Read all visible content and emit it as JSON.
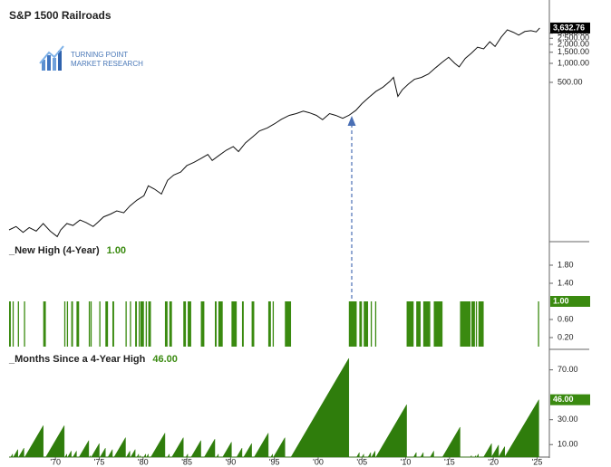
{
  "logo": [
    "TURNING POINT",
    "MARKET RESEARCH"
  ],
  "chart_data": [
    {
      "type": "line",
      "title": "S&P 1500 Railroads",
      "color": "#111111",
      "yscale": "log",
      "xlim": [
        1964.7,
        2026.4
      ],
      "ylim": [
        1.6,
        7250
      ],
      "yticks": [
        {
          "value": 500,
          "label": "500.00"
        },
        {
          "value": 1000,
          "label": "1,000.00"
        },
        {
          "value": 1500,
          "label": "1,500.00"
        },
        {
          "value": 2000,
          "label": "2,000.00"
        },
        {
          "value": 2500,
          "label": "2,500.00"
        },
        {
          "value": 3000,
          "label": "3,000.00"
        }
      ],
      "value_label": "3,632.76",
      "box_color": "#000000",
      "x": [
        1964.7,
        1965.5,
        1966.3,
        1967,
        1967.8,
        1968.6,
        1969.4,
        1970.2,
        1970.6,
        1971.3,
        1972,
        1972.8,
        1973.5,
        1974.3,
        1974.8,
        1975.5,
        1976.3,
        1977,
        1977.8,
        1978.5,
        1979.3,
        1980.1,
        1980.6,
        1981.3,
        1982.1,
        1982.8,
        1983.5,
        1984.3,
        1985,
        1985.8,
        1986.6,
        1987.4,
        1987.9,
        1988.7,
        1989.5,
        1990.3,
        1990.9,
        1991.7,
        1992.5,
        1993.3,
        1994.2,
        1995,
        1995.8,
        1996.7,
        1997.5,
        1998.3,
        1999,
        1999.8,
        2000.5,
        2001.3,
        2002,
        2002.8,
        2003.5,
        2004.3,
        2005,
        2005.8,
        2006.6,
        2007.4,
        2008.2,
        2008.6,
        2009.1,
        2009.6,
        2010.3,
        2011,
        2011.8,
        2012.6,
        2013.4,
        2014.2,
        2014.9,
        2015.6,
        2016.1,
        2016.8,
        2017.5,
        2018.2,
        2018.9,
        2019.6,
        2020.2,
        2020.9,
        2021.6,
        2022.3,
        2022.9,
        2023.6,
        2024.3,
        2024.9,
        2025.3
      ],
      "values": [
        2.3,
        2.6,
        2.1,
        2.5,
        2.2,
        2.9,
        2.2,
        1.8,
        2.3,
        2.9,
        2.7,
        3.3,
        3.0,
        2.6,
        3.0,
        3.7,
        4.1,
        4.6,
        4.3,
        5.5,
        6.8,
        8.0,
        11.5,
        10.2,
        8.5,
        14,
        17,
        19,
        24,
        27,
        31,
        36,
        29,
        35,
        42,
        48,
        40,
        55,
        68,
        85,
        95,
        110,
        130,
        150,
        160,
        175,
        165,
        150,
        128,
        160,
        150,
        135,
        150,
        180,
        230,
        290,
        360,
        420,
        520,
        600,
        300,
        380,
        470,
        560,
        600,
        680,
        850,
        1050,
        1250,
        1000,
        880,
        1200,
        1450,
        1800,
        1700,
        2200,
        1850,
        2600,
        3400,
        3100,
        2800,
        3200,
        3300,
        3150,
        3632.76
      ]
    },
    {
      "type": "bar",
      "title": "_New High (4-Year)",
      "color": "#3a8a10",
      "label_color": "#3a8a10",
      "xlim": [
        1964.7,
        2026.4
      ],
      "ylim": [
        0,
        2.3
      ],
      "yticks": [
        {
          "value": 0.2,
          "label": "0.20"
        },
        {
          "value": 0.6,
          "label": "0.60"
        },
        {
          "value": 1.4,
          "label": "1.40"
        },
        {
          "value": 1.8,
          "label": "1.80"
        }
      ],
      "value_label": "1.00",
      "box_color": "#3a8a10",
      "start": [
        1964.7,
        1965.1,
        1965.7,
        1966.4,
        1968.6,
        1971.0,
        1971.3,
        1971.8,
        1972.4,
        1973.8,
        1974.0,
        1975.0,
        1975.7,
        1976.5,
        1978.0,
        1978.5,
        1979.1,
        1979.5,
        1979.7,
        1980.3,
        1980.6,
        1982.5,
        1983.0,
        1984.6,
        1985.1,
        1986.6,
        1988.2,
        1988.6,
        1990.1,
        1991.3,
        1992.4,
        1994.3,
        1994.8,
        1996.2,
        2003.5,
        2004.7,
        2005.2,
        2006.0,
        2006.5,
        2010.1,
        2011.2,
        2012.0,
        2013.2,
        2016.2,
        2017.5,
        2018.0,
        2018.3,
        2025.1
      ],
      "end": [
        1964.9,
        1965.2,
        1965.8,
        1966.5,
        1968.9,
        1971.1,
        1971.4,
        1972.0,
        1972.7,
        1973.9,
        1974.1,
        1975.1,
        1976.0,
        1976.7,
        1978.1,
        1978.6,
        1979.3,
        1979.6,
        1980.1,
        1980.4,
        1980.9,
        1982.8,
        1983.3,
        1984.9,
        1985.5,
        1987.0,
        1988.4,
        1989.1,
        1990.7,
        1991.5,
        1992.7,
        1994.6,
        1994.9,
        1996.9,
        2004.4,
        2005.0,
        2005.7,
        2006.1,
        2006.6,
        2010.9,
        2011.7,
        2012.8,
        2014.2,
        2017.4,
        2017.9,
        2018.1,
        2018.9,
        2025.2
      ],
      "values": [
        1,
        1,
        1,
        1,
        1,
        1,
        1,
        1,
        1,
        1,
        1,
        1,
        1,
        1,
        1,
        1,
        1,
        1,
        1,
        1,
        1,
        1,
        1,
        1,
        1,
        1,
        1,
        1,
        1,
        1,
        1,
        1,
        1,
        1,
        1,
        1,
        1,
        1,
        1,
        1,
        1,
        1,
        1,
        1,
        1,
        1,
        1,
        1
      ]
    },
    {
      "type": "area",
      "title": "_Months Since a 4-Year High",
      "color": "#2f7d0c",
      "label_color": "#3a8a10",
      "xlim": [
        1964.7,
        2026.4
      ],
      "ylim": [
        0,
        85
      ],
      "yticks": [
        {
          "value": 10,
          "label": "10.00"
        },
        {
          "value": 30,
          "label": "30.00"
        },
        {
          "value": 70,
          "label": "70.00"
        }
      ],
      "xticks": [
        {
          "value": 1970,
          "label": "'70"
        },
        {
          "value": 1975,
          "label": "'75"
        },
        {
          "value": 1980,
          "label": "'80"
        },
        {
          "value": 1985,
          "label": "'85"
        },
        {
          "value": 1990,
          "label": "'90"
        },
        {
          "value": 1995,
          "label": "'95"
        },
        {
          "value": 2000,
          "label": "'00"
        },
        {
          "value": 2005,
          "label": "'05"
        },
        {
          "value": 2010,
          "label": "'10"
        },
        {
          "value": 2015,
          "label": "'15"
        },
        {
          "value": 2020,
          "label": "'20"
        },
        {
          "value": 2025,
          "label": "'25"
        }
      ],
      "value_label": "46.00",
      "box_color": "#3a8a10",
      "x": [
        1964.7,
        1964.9,
        1965.1,
        1965.1,
        1965.2,
        1965.7,
        1965.7,
        1965.8,
        1966.4,
        1966.4,
        1966.5,
        1968.6,
        1968.6,
        1968.9,
        1971.0,
        1971.0,
        1971.1,
        1971.3,
        1971.3,
        1971.4,
        1971.8,
        1971.8,
        1972.0,
        1972.4,
        1972.4,
        1972.7,
        1973.8,
        1973.8,
        1973.9,
        1974.0,
        1974.0,
        1974.1,
        1975.0,
        1975.0,
        1975.1,
        1975.7,
        1975.7,
        1976.0,
        1976.5,
        1976.5,
        1976.7,
        1978.0,
        1978.0,
        1978.1,
        1978.5,
        1978.5,
        1978.6,
        1979.1,
        1979.1,
        1979.3,
        1979.5,
        1979.5,
        1979.6,
        1979.7,
        1979.7,
        1980.1,
        1980.3,
        1980.3,
        1980.4,
        1980.6,
        1980.6,
        1980.9,
        1982.5,
        1982.5,
        1982.8,
        1983.0,
        1983.0,
        1983.3,
        1984.6,
        1984.6,
        1984.9,
        1985.1,
        1985.1,
        1985.5,
        1986.6,
        1986.6,
        1987.0,
        1988.2,
        1988.2,
        1988.4,
        1988.6,
        1988.6,
        1989.1,
        1990.1,
        1990.1,
        1990.7,
        1991.3,
        1991.3,
        1991.5,
        1992.4,
        1992.4,
        1992.7,
        1994.3,
        1994.3,
        1994.6,
        1994.8,
        1994.8,
        1994.9,
        1996.2,
        1996.2,
        1996.9,
        2003.5,
        2003.5,
        2004.4,
        2004.7,
        2004.7,
        2005.0,
        2005.2,
        2005.2,
        2005.7,
        2006.0,
        2006.0,
        2006.1,
        2006.5,
        2006.5,
        2006.6,
        2010.1,
        2010.1,
        2010.9,
        2011.2,
        2011.2,
        2011.7,
        2012.0,
        2012.0,
        2012.8,
        2013.2,
        2013.2,
        2014.2,
        2016.2,
        2016.2,
        2017.4,
        2017.5,
        2017.5,
        2017.9,
        2018.0,
        2018.0,
        2018.1,
        2018.3,
        2018.3,
        2018.9,
        2019.8,
        2019.8,
        2020.6,
        2020.6,
        2021.3,
        2021.3,
        2025.2
      ],
      "values": [
        0,
        0,
        2.4,
        0,
        0,
        6,
        0,
        0,
        7.2,
        0,
        0,
        25.2,
        0,
        0,
        25.2,
        0,
        0,
        2.4,
        0,
        0,
        4.8,
        0,
        0,
        4.8,
        0,
        0,
        13.2,
        0,
        0,
        1.2,
        0,
        0,
        10.8,
        0,
        0,
        7.2,
        0,
        0,
        6,
        0,
        0,
        15.6,
        0,
        0,
        4.8,
        0,
        0,
        6,
        0,
        0,
        2.4,
        0,
        0,
        1.2,
        0,
        0,
        2.4,
        0,
        0,
        2.4,
        0,
        0,
        19.2,
        0,
        0,
        2.4,
        0,
        0,
        15.6,
        0,
        0,
        2.4,
        0,
        0,
        13.2,
        0,
        0,
        14.4,
        0,
        0,
        2.4,
        0,
        0,
        12,
        0,
        0,
        7.2,
        0,
        0,
        10.8,
        0,
        0,
        19.2,
        0,
        0,
        2.4,
        0,
        0,
        15.6,
        0,
        0,
        79.2,
        0,
        0,
        3.6,
        0,
        0,
        2.4,
        0,
        0,
        3.6,
        0,
        0,
        4.8,
        0,
        0,
        42,
        0,
        0,
        3.6,
        0,
        0,
        3.6,
        0,
        0,
        4.8,
        0,
        0,
        24,
        0,
        0,
        1.2,
        0,
        0,
        1.2,
        0,
        0,
        2.4,
        0,
        0,
        10.8,
        0,
        9.6,
        0,
        8.4,
        0,
        46
      ]
    }
  ]
}
